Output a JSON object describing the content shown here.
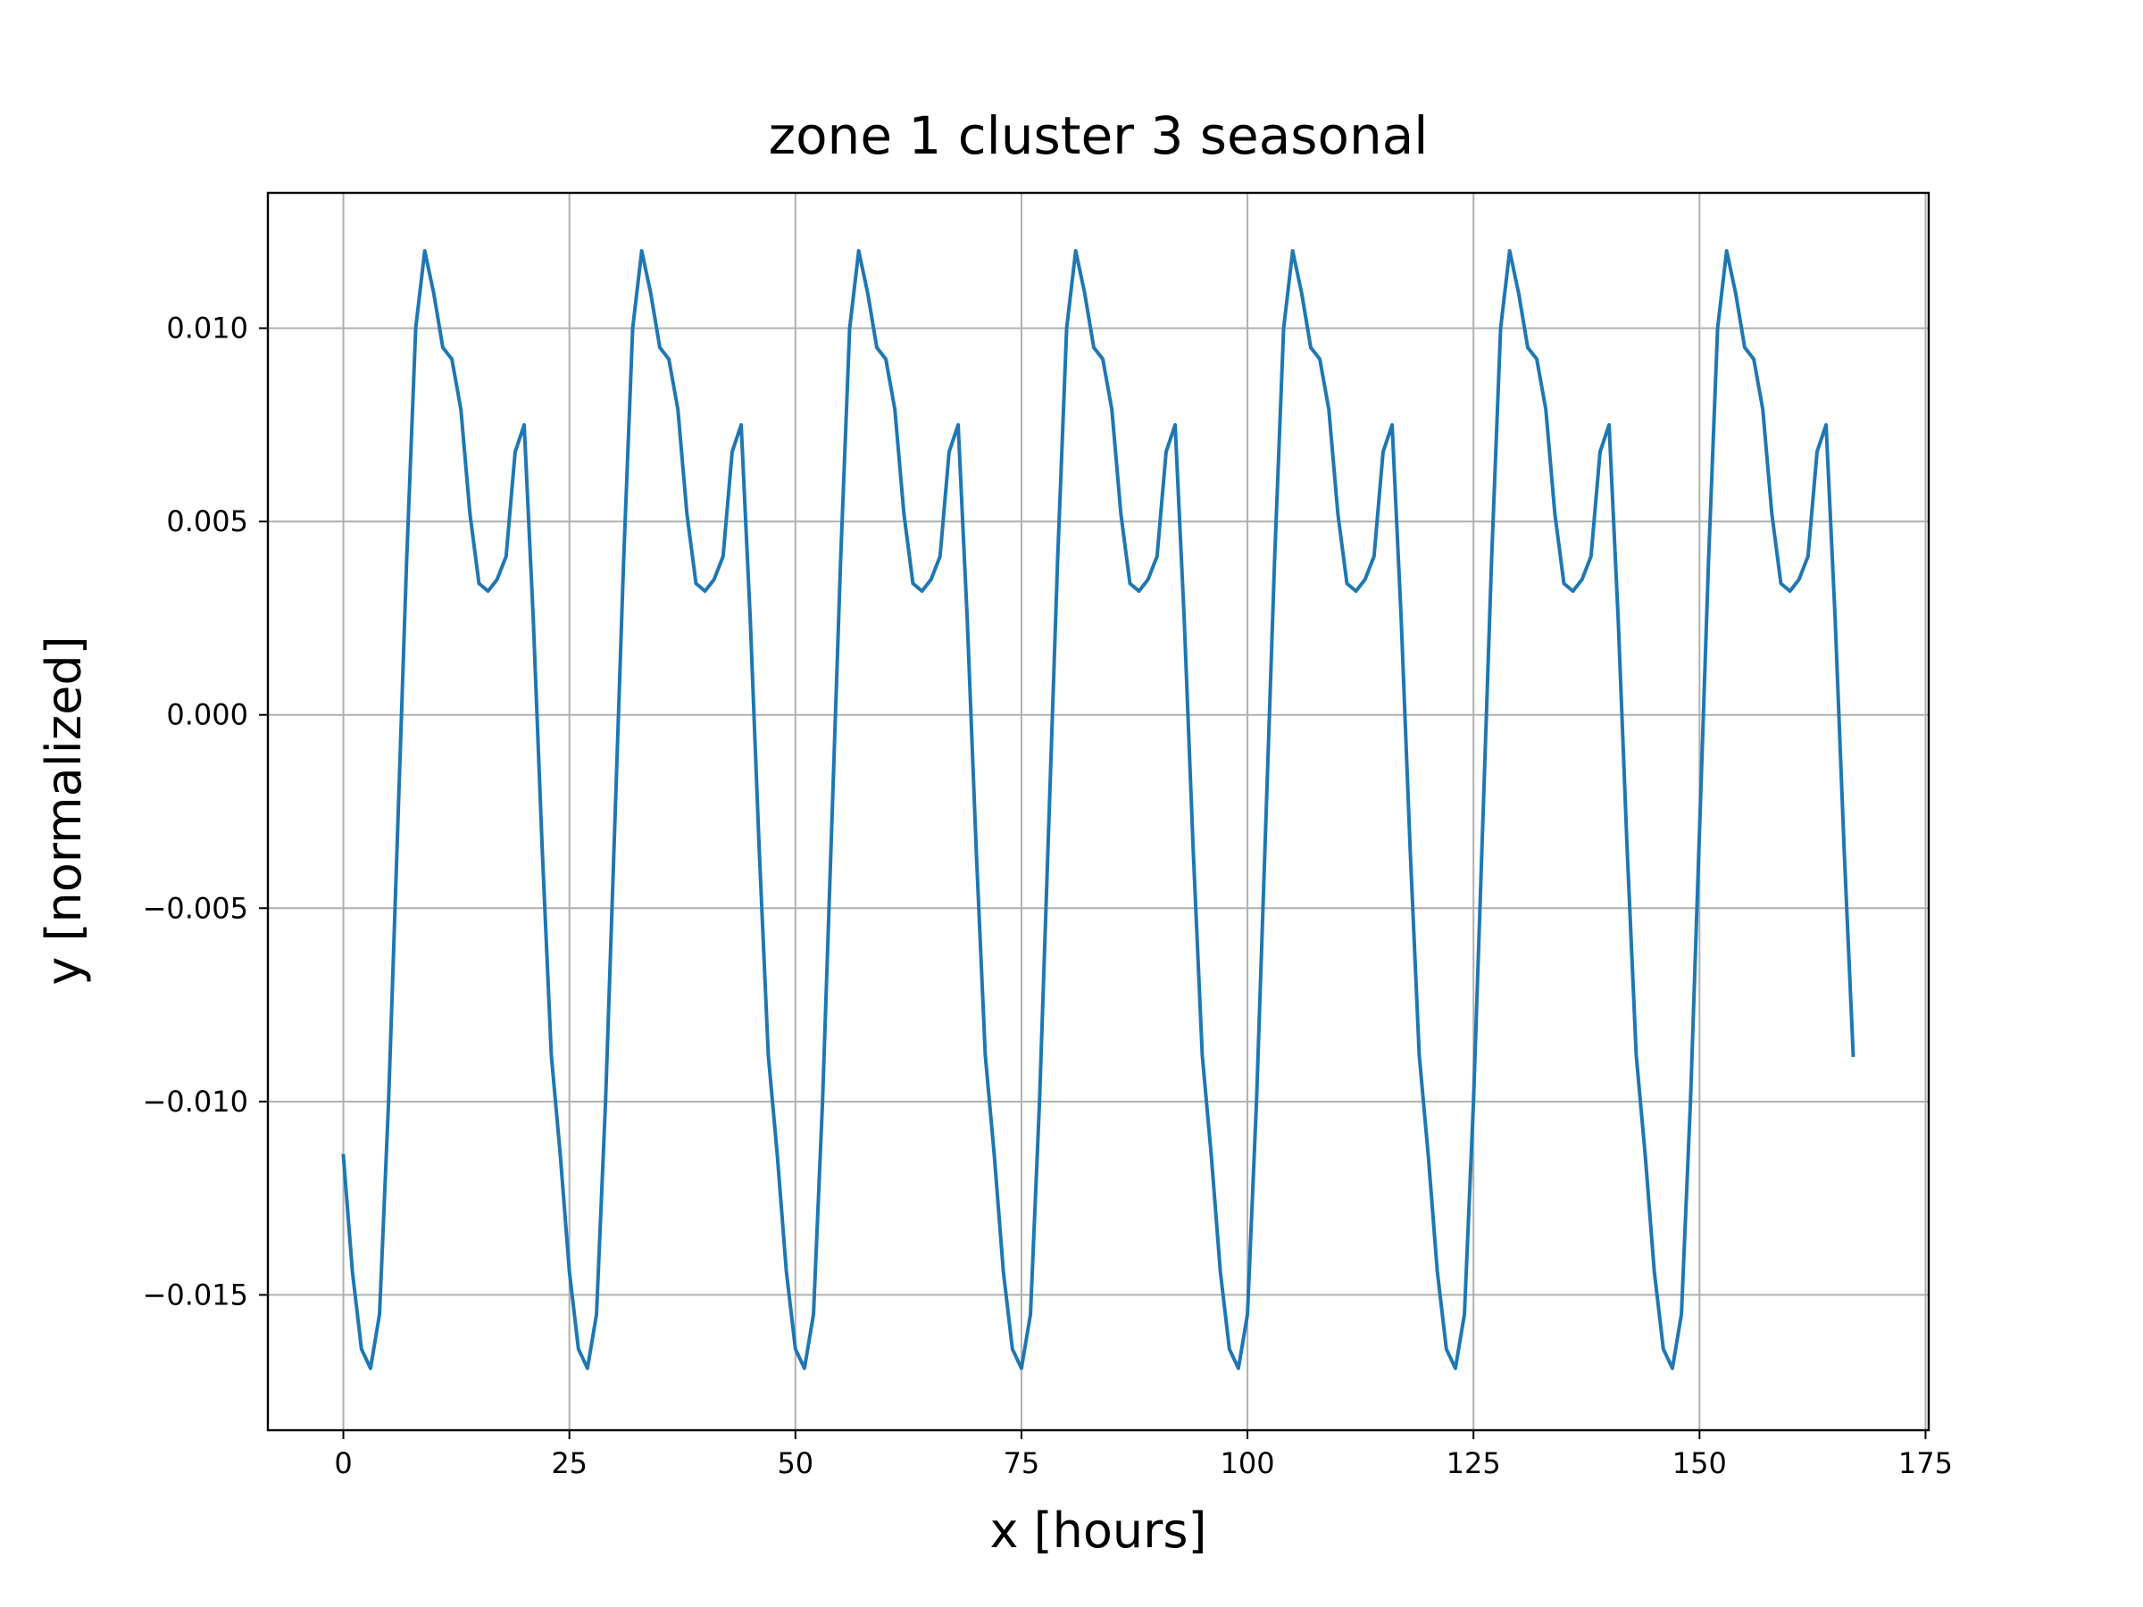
{
  "chart_data": {
    "type": "line",
    "title": "zone 1 cluster 3 seasonal",
    "xlabel": "x [hours]",
    "ylabel": "y [normalized]",
    "xlim": [
      -8.35,
      175.35
    ],
    "ylim": [
      -0.0185,
      0.0135
    ],
    "x_ticks": [
      0,
      25,
      50,
      75,
      100,
      125,
      150,
      175
    ],
    "x_tick_labels": [
      "0",
      "25",
      "50",
      "75",
      "100",
      "125",
      "150",
      "175"
    ],
    "y_ticks": [
      0.01,
      0.005,
      0.0,
      -0.005,
      -0.01,
      -0.015
    ],
    "y_tick_labels": [
      "0.010",
      "0.005",
      "0.000",
      "−0.005",
      "−0.010",
      "−0.015"
    ],
    "grid": true,
    "colors": {
      "series": "#1f77b4",
      "grid": "#b0b0b0",
      "axes": "#000000"
    },
    "daily_pattern": [
      -0.0114,
      -0.0144,
      -0.0164,
      -0.0169,
      -0.0155,
      -0.01,
      -0.003,
      0.004,
      0.01,
      0.012,
      0.0109,
      0.0095,
      0.0092,
      0.0079,
      0.0052,
      0.0034,
      0.0032,
      0.0035,
      0.0041,
      0.0068,
      0.0075,
      0.0025,
      -0.0035,
      -0.0088
    ],
    "series": [
      {
        "x_start": 0,
        "x_end": 167,
        "x_step": 1
      }
    ]
  }
}
